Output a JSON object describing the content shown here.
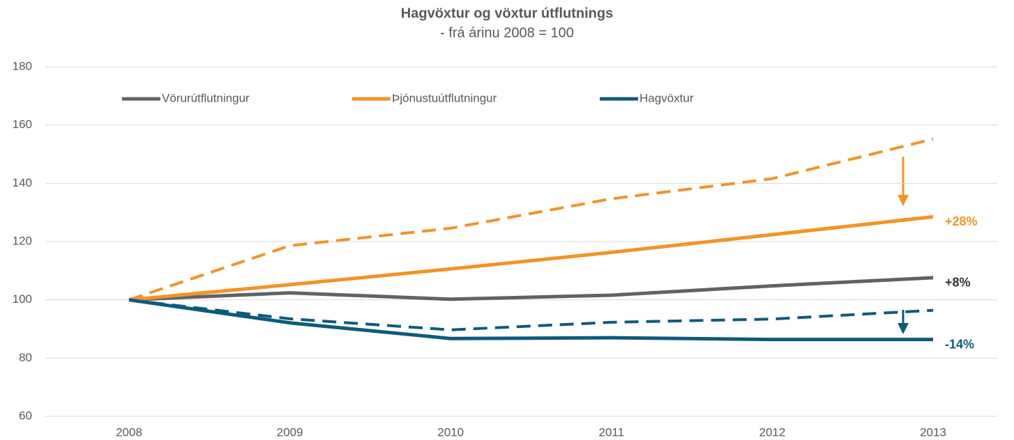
{
  "chart_data": {
    "type": "line",
    "title": "Hagvöxtur og vöxtur útflutnings",
    "subtitle": "- frá árinu 2008 = 100",
    "categories": [
      "2008",
      "2009",
      "2010",
      "2011",
      "2012",
      "2013"
    ],
    "series": [
      {
        "name": "Vörurútflutningur",
        "color": "#5f6369",
        "values": [
          100,
          102.4,
          100.2,
          101.6,
          104.8,
          107.6
        ],
        "end_label": "+8%",
        "end_label_color": "#333333"
      },
      {
        "name": "Þjónustuútflutningur",
        "color": "#f39325",
        "values": [
          100,
          105.2,
          110.6,
          116.3,
          122.4,
          128.5
        ],
        "end_label": "+28%",
        "end_label_color": "#f39325"
      },
      {
        "name": "Hagvöxtur",
        "color": "#0d5b7c",
        "values": [
          100,
          92.1,
          86.7,
          87.0,
          86.4,
          86.4
        ],
        "end_label": "-14%",
        "end_label_color": "#0d5b7c"
      },
      {
        "color": "#f39325",
        "dashed": true,
        "values": [
          100,
          118.6,
          124.6,
          134.7,
          141.6,
          155.2
        ]
      },
      {
        "color": "#0d5b7c",
        "dashed": true,
        "values": [
          100,
          93.5,
          89.7,
          92.3,
          93.4,
          96.4
        ]
      }
    ],
    "ylim": [
      60,
      180
    ],
    "yticks": [
      60,
      80,
      100,
      120,
      140,
      160,
      180
    ],
    "grid": true,
    "legend": "top"
  }
}
